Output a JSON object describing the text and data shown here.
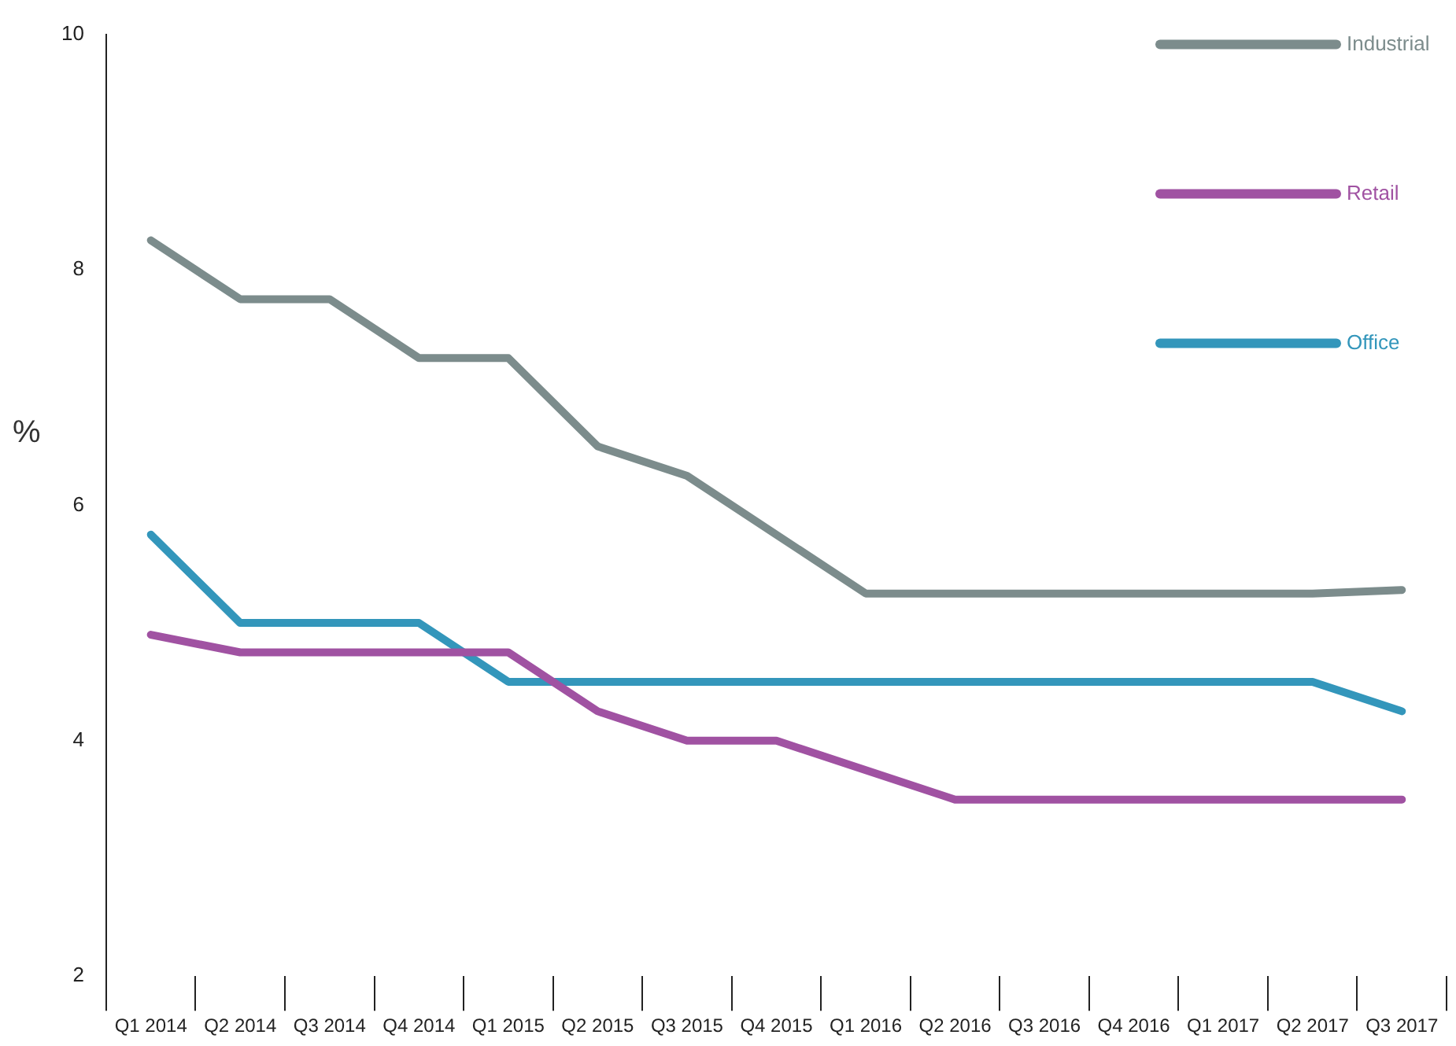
{
  "chart_data": {
    "type": "line",
    "ylabel": "%",
    "categories": [
      "Q1 2014",
      "Q2 2014",
      "Q3 2014",
      "Q4 2014",
      "Q1 2015",
      "Q2 2015",
      "Q3 2015",
      "Q4 2015",
      "Q1 2016",
      "Q2 2016",
      "Q3 2016",
      "Q4 2016",
      "Q1 2017",
      "Q2 2017",
      "Q3 2017"
    ],
    "series": [
      {
        "name": "Industrial",
        "color": "#7c8c8c",
        "values": [
          8.25,
          7.75,
          7.75,
          7.25,
          7.25,
          6.5,
          6.25,
          5.75,
          5.25,
          5.25,
          5.25,
          5.25,
          5.25,
          5.25,
          5.28
        ]
      },
      {
        "name": "Retail",
        "color": "#a052a2",
        "values": [
          4.9,
          4.75,
          4.75,
          4.75,
          4.75,
          4.25,
          4.0,
          4.0,
          3.75,
          3.5,
          3.5,
          3.5,
          3.5,
          3.5,
          3.5
        ]
      },
      {
        "name": "Office",
        "color": "#3396bb",
        "values": [
          5.75,
          5.0,
          5.0,
          5.0,
          4.5,
          4.5,
          4.5,
          4.5,
          4.5,
          4.5,
          4.5,
          4.5,
          4.5,
          4.5,
          4.25
        ]
      }
    ],
    "ylim": [
      2,
      10
    ],
    "yticks": [
      2,
      4,
      6,
      8,
      10
    ],
    "grid": false,
    "legend": "top right",
    "marker": "none",
    "line_style": "solid"
  }
}
